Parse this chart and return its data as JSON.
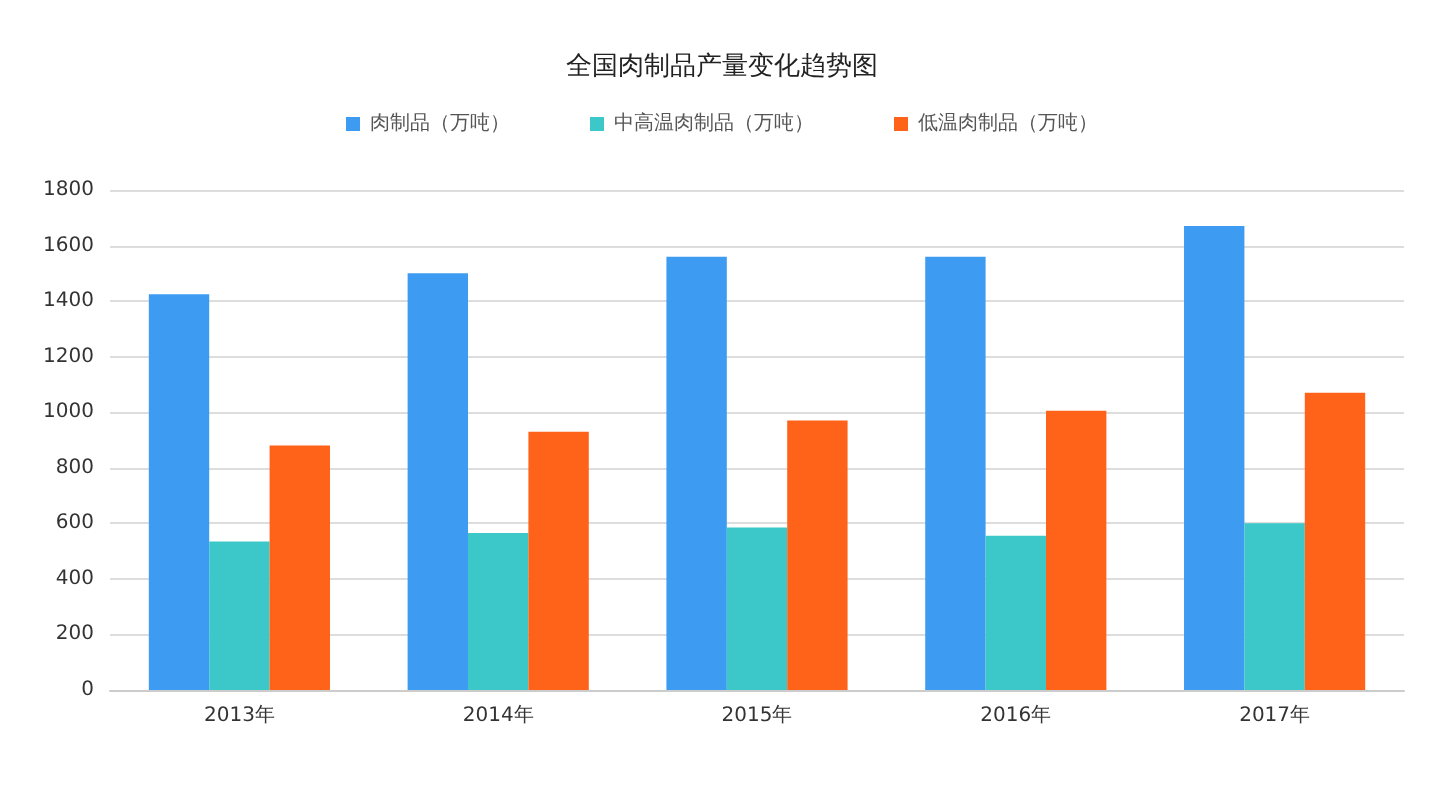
{
  "chart_data": {
    "type": "bar",
    "title": "全国肉制品产量变化趋势图",
    "categories": [
      "2013年",
      "2014年",
      "2015年",
      "2016年",
      "2017年"
    ],
    "series": [
      {
        "name": "肉制品（万吨）",
        "color": "#3d9cf2",
        "values": [
          1425,
          1500,
          1560,
          1560,
          1670
        ]
      },
      {
        "name": "中高温肉制品（万吨）",
        "color": "#3cc8c8",
        "values": [
          535,
          565,
          585,
          555,
          600
        ]
      },
      {
        "name": "低温肉制品（万吨）",
        "color": "#ff6219",
        "values": [
          880,
          930,
          970,
          1005,
          1070
        ]
      }
    ],
    "ylim": [
      0,
      1800
    ],
    "yticks": [
      0,
      200,
      400,
      600,
      800,
      1000,
      1200,
      1400,
      1600,
      1800
    ],
    "grid": "y",
    "legend": "top"
  }
}
